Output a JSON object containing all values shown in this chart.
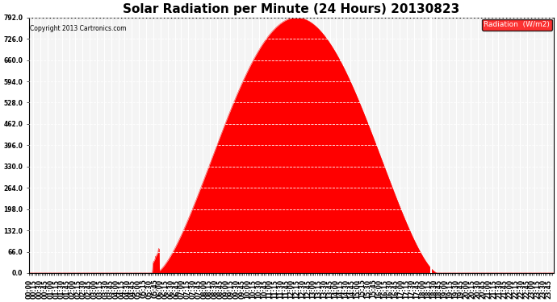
{
  "title": "Solar Radiation per Minute (24 Hours) 20130823",
  "copyright": "Copyright 2013 Cartronics.com",
  "legend_label": "Radiation  (W/m2)",
  "ylabel_ticks": [
    0.0,
    66.0,
    132.0,
    198.0,
    264.0,
    330.0,
    396.0,
    462.0,
    528.0,
    594.0,
    660.0,
    726.0,
    792.0
  ],
  "ylim": [
    0.0,
    792.0
  ],
  "fill_color": "#FF0000",
  "line_color": "#FF0000",
  "background_color": "#FFFFFF",
  "grid_color_h": "#AAAAAA",
  "grid_color_v": "#AAAAAA",
  "title_fontsize": 11,
  "tick_fontsize": 5.5,
  "legend_bg": "#FF0000",
  "legend_text_color": "#FFFFFF",
  "sunrise": 348,
  "sunset": 1120,
  "peak_time": 745,
  "peak_value": 792.0,
  "white_spike": 1102
}
